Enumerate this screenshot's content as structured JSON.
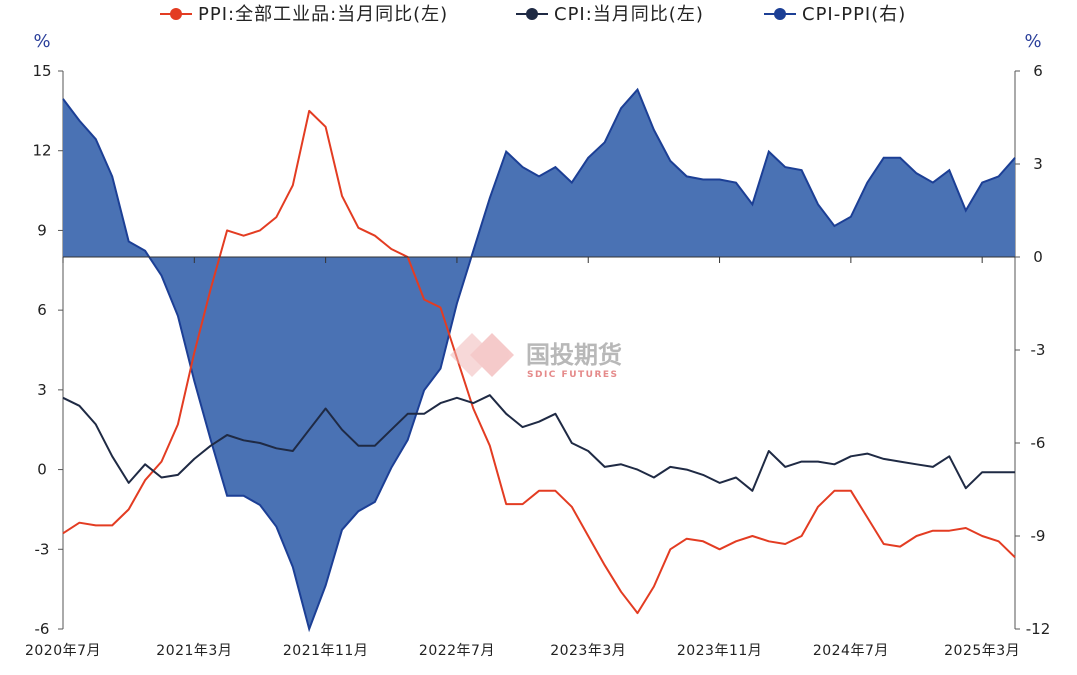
{
  "chart_data": {
    "type": "line+area",
    "colors": {
      "ppi": "#e33c22",
      "cpi": "#1f2a44",
      "spread": "#4a72b4",
      "spread_edge": "#1c3f95"
    },
    "legend": [
      {
        "key": "ppi",
        "label": "PPI:全部工业品:当月同比(左)"
      },
      {
        "key": "cpi",
        "label": "CPI:当月同比(左)"
      },
      {
        "key": "spread",
        "label": "CPI-PPI(右)"
      }
    ],
    "left_axis": {
      "unit": "%",
      "ylim": [
        -6,
        15
      ],
      "ticks": [
        "15",
        "12",
        "9",
        "6",
        "3",
        "0",
        "-3",
        "-6"
      ]
    },
    "right_axis": {
      "unit": "%",
      "ylim": [
        -12,
        6
      ],
      "ticks": [
        "6",
        "3",
        "0",
        "-3",
        "-6",
        "-9",
        "-12"
      ]
    },
    "x_labels": [
      "2020年7月",
      "2021年3月",
      "2021年11月",
      "2022年7月",
      "2023年3月",
      "2023年11月",
      "2024年7月",
      "2025年3月"
    ],
    "x_label_index": [
      0,
      8,
      16,
      24,
      32,
      40,
      48,
      56
    ],
    "series": [
      {
        "name": "PPI:全部工业品:当月同比",
        "axis": "left",
        "values": [
          -2.4,
          -2.0,
          -2.1,
          -2.1,
          -1.5,
          -0.4,
          0.3,
          1.7,
          4.4,
          6.8,
          9.0,
          8.8,
          9.0,
          9.5,
          10.7,
          13.5,
          12.9,
          10.3,
          9.1,
          8.8,
          8.3,
          8.0,
          6.4,
          6.1,
          4.2,
          2.3,
          0.9,
          -1.3,
          -1.3,
          -0.8,
          -0.8,
          -1.4,
          -2.5,
          -3.6,
          -4.6,
          -5.4,
          -4.4,
          -3.0,
          -2.6,
          -2.7,
          -3.0,
          -2.7,
          -2.5,
          -2.7,
          -2.8,
          -2.5,
          -1.4,
          -0.8,
          -0.8,
          -1.8,
          -2.8,
          -2.9,
          -2.5,
          -2.3,
          -2.3,
          -2.2,
          -2.5,
          -2.7,
          -3.3
        ]
      },
      {
        "name": "CPI:当月同比",
        "axis": "left",
        "values": [
          2.7,
          2.4,
          1.7,
          0.5,
          -0.5,
          0.2,
          -0.3,
          -0.2,
          0.4,
          0.9,
          1.3,
          1.1,
          1.0,
          0.8,
          0.7,
          1.5,
          2.3,
          1.5,
          0.9,
          0.9,
          1.5,
          2.1,
          2.1,
          2.5,
          2.7,
          2.5,
          2.8,
          2.1,
          1.6,
          1.8,
          2.1,
          1.0,
          0.7,
          0.1,
          0.2,
          0.0,
          -0.3,
          0.1,
          0.0,
          -0.2,
          -0.5,
          -0.3,
          -0.8,
          0.7,
          0.1,
          0.3,
          0.3,
          0.2,
          0.5,
          0.6,
          0.4,
          0.3,
          0.2,
          0.1,
          0.5,
          -0.7,
          -0.1,
          -0.1,
          -0.1
        ]
      },
      {
        "name": "CPI-PPI",
        "axis": "right",
        "values": [
          5.1,
          4.4,
          3.8,
          2.6,
          0.5,
          0.2,
          -0.6,
          -1.9,
          -4.0,
          -5.9,
          -7.7,
          -7.7,
          -8.0,
          -8.7,
          -10.0,
          -12.0,
          -10.6,
          -8.8,
          -8.2,
          -7.9,
          -6.8,
          -5.9,
          -4.3,
          -3.6,
          -1.5,
          0.2,
          1.9,
          3.4,
          2.9,
          2.6,
          2.9,
          2.4,
          3.2,
          3.7,
          4.8,
          5.4,
          4.1,
          3.1,
          2.6,
          2.5,
          2.5,
          2.4,
          1.7,
          3.4,
          2.9,
          2.8,
          1.7,
          1.0,
          1.3,
          2.4,
          3.2,
          3.2,
          2.7,
          2.4,
          2.8,
          1.5,
          2.4,
          2.6,
          3.2
        ]
      }
    ]
  },
  "watermark": {
    "name": "国投期货",
    "sub": "SDIC FUTURES"
  }
}
